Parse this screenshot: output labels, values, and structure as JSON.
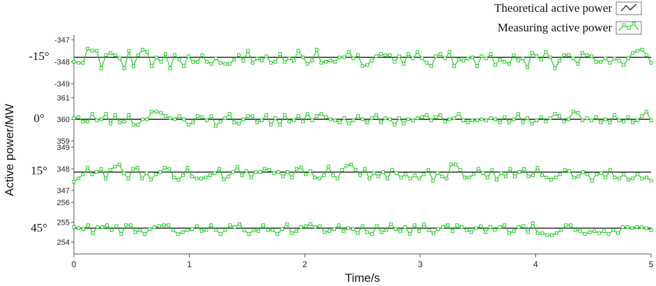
{
  "chart_data": {
    "type": "line",
    "xlabel": "Time/s",
    "ylabel": "Active power/MW",
    "xlim": [
      0,
      5
    ],
    "xticks": [
      "0",
      "1",
      "2",
      "3",
      "4",
      "5"
    ],
    "legend": {
      "placement": "top-right",
      "entries": [
        "Theoretical active power",
        "Measuring active power"
      ]
    },
    "colors": {
      "theoretical": "#1a1a1a",
      "measured": "#22cc22",
      "axis": "#555555"
    },
    "panels": [
      {
        "label": "-15°",
        "ylim": [
          -349,
          -347
        ],
        "yticks": [
          "-347",
          "-348",
          "-349"
        ],
        "theoretical": -347.8,
        "measured": [
          -348.0,
          -348.05,
          -348.05,
          -347.4,
          -347.5,
          -347.5,
          -348.3,
          -347.7,
          -347.6,
          -347.7,
          -347.85,
          -348.3,
          -347.5,
          -348.2,
          -347.7,
          -347.45,
          -347.55,
          -348.2,
          -347.8,
          -348.0,
          -347.65,
          -348.3,
          -347.7,
          -347.9,
          -348.2,
          -347.75,
          -348.0,
          -348.0,
          -347.7,
          -348.0,
          -348.1,
          -347.85,
          -348.05,
          -348.1,
          -348.1,
          -347.9,
          -347.7,
          -347.95,
          -347.5,
          -348.05,
          -347.85,
          -347.95,
          -347.75,
          -348.05,
          -348.0,
          -347.65,
          -348.0,
          -347.85,
          -347.95,
          -347.5,
          -347.8,
          -348.1,
          -347.95,
          -347.45,
          -348.05,
          -348.0,
          -347.95,
          -348.0,
          -347.8,
          -347.8,
          -347.55,
          -347.85,
          -347.7,
          -348.2,
          -348.15,
          -347.95,
          -347.75,
          -347.65,
          -347.7,
          -347.7,
          -348.0,
          -347.75,
          -348.1,
          -347.65,
          -347.85,
          -347.55,
          -347.85,
          -348.05,
          -348.2,
          -347.75,
          -347.65,
          -347.85,
          -347.55,
          -348.2,
          -347.9,
          -347.95,
          -347.85,
          -347.8,
          -348.2,
          -347.75,
          -347.85,
          -347.65,
          -348.15,
          -347.9,
          -348.0,
          -348.1,
          -347.7,
          -347.95,
          -347.85,
          -348.25,
          -347.6,
          -347.75,
          -347.9,
          -347.55,
          -347.8,
          -348.3,
          -347.95,
          -347.7,
          -347.7,
          -347.85,
          -348.1,
          -347.6,
          -347.7,
          -347.75,
          -348.0,
          -348.0,
          -347.85,
          -348.05,
          -347.85,
          -347.95,
          -348.15,
          -347.85,
          -347.6,
          -347.5,
          -347.45,
          -347.7,
          -348.05
        ]
      },
      {
        "label": "0°",
        "ylim": [
          359,
          361
        ],
        "yticks": [
          "361",
          "360",
          "359"
        ],
        "theoretical": 360.0,
        "measured": [
          360.05,
          360.1,
          359.9,
          359.9,
          360.25,
          359.95,
          360.0,
          360.25,
          359.8,
          360.2,
          359.85,
          359.9,
          360.2,
          359.75,
          359.75,
          360.0,
          360.0,
          360.35,
          360.35,
          360.3,
          360.15,
          360.05,
          360.0,
          360.15,
          360.0,
          359.75,
          359.85,
          360.15,
          360.1,
          359.95,
          360.15,
          359.7,
          359.9,
          360.05,
          360.25,
          359.85,
          359.8,
          360.0,
          360.15,
          360.15,
          359.85,
          359.95,
          360.2,
          359.75,
          360.05,
          359.75,
          360.2,
          359.9,
          359.95,
          360.15,
          359.9,
          360.25,
          359.95,
          360.15,
          360.25,
          360.1,
          360.0,
          359.95,
          359.85,
          360.05,
          359.8,
          359.95,
          360.15,
          360.0,
          359.85,
          360.05,
          360.2,
          359.85,
          360.05,
          360.0,
          359.75,
          360.05,
          359.8,
          360.0,
          359.95,
          360.05,
          360.1,
          360.2,
          359.95,
          360.1,
          360.2,
          359.9,
          360.0,
          360.05,
          360.25,
          359.95,
          359.85,
          359.95,
          359.95,
          360.0,
          359.95,
          360.05,
          360.0,
          359.85,
          360.1,
          359.85,
          360.0,
          360.25,
          359.85,
          360.05,
          359.8,
          359.95,
          360.1,
          359.9,
          360.05,
          360.25,
          360.15,
          359.9,
          360.0,
          360.35,
          360.3,
          359.95,
          360.05,
          359.95,
          360.1,
          359.85,
          360.0,
          359.85,
          360.2,
          359.95,
          359.9,
          360.1,
          359.85,
          359.95,
          360.15,
          360.35,
          359.95
        ]
      },
      {
        "label": "15°",
        "ylim": [
          347,
          349
        ],
        "yticks": [
          "349",
          "348",
          "347"
        ],
        "theoretical": 347.85,
        "measured": [
          347.4,
          347.55,
          347.75,
          348.05,
          347.75,
          347.85,
          348.0,
          347.55,
          347.95,
          348.1,
          348.2,
          347.8,
          347.55,
          348.0,
          348.05,
          347.55,
          347.8,
          347.5,
          347.75,
          347.85,
          348.05,
          348.0,
          347.6,
          347.5,
          347.7,
          348.05,
          347.65,
          347.55,
          347.55,
          347.6,
          347.7,
          347.8,
          348.0,
          347.5,
          347.65,
          347.85,
          348.1,
          347.7,
          347.9,
          347.6,
          347.85,
          347.85,
          348.0,
          347.95,
          347.8,
          347.85,
          347.65,
          347.85,
          347.6,
          348.0,
          348.05,
          347.75,
          347.9,
          347.6,
          347.55,
          347.7,
          348.1,
          347.7,
          347.55,
          347.95,
          348.15,
          348.2,
          347.95,
          347.7,
          348.0,
          347.55,
          347.8,
          347.65,
          347.85,
          347.55,
          347.95,
          347.8,
          347.6,
          347.75,
          347.55,
          347.7,
          347.55,
          347.75,
          347.95,
          347.45,
          347.8,
          347.65,
          347.55,
          348.2,
          348.2,
          347.95,
          347.6,
          347.6,
          347.75,
          348.0,
          347.8,
          347.6,
          347.95,
          347.5,
          347.8,
          347.65,
          348.0,
          347.65,
          347.85,
          348.0,
          347.65,
          347.7,
          348.05,
          347.7,
          347.6,
          347.5,
          347.6,
          347.75,
          347.95,
          347.9,
          347.6,
          347.65,
          347.85,
          347.75,
          347.45,
          347.75,
          347.8,
          347.6,
          347.95,
          347.6,
          347.55,
          347.75,
          347.5,
          347.55,
          347.75,
          347.55,
          347.6,
          347.45
        ]
      },
      {
        "label": "45°",
        "ylim": [
          254,
          256
        ],
        "yticks": [
          "256",
          "255",
          "254"
        ],
        "theoretical": 254.7,
        "measured": [
          254.75,
          254.7,
          254.65,
          254.85,
          254.45,
          254.75,
          254.75,
          254.85,
          254.6,
          254.8,
          254.4,
          254.85,
          254.85,
          254.5,
          254.6,
          254.4,
          254.65,
          254.75,
          254.8,
          254.85,
          254.85,
          254.6,
          254.4,
          254.5,
          254.6,
          254.65,
          254.8,
          254.55,
          254.6,
          254.85,
          254.6,
          254.4,
          254.6,
          254.85,
          254.75,
          254.9,
          254.6,
          254.4,
          254.6,
          254.55,
          254.85,
          254.6,
          254.6,
          254.4,
          254.65,
          254.9,
          254.45,
          254.55,
          254.75,
          254.8,
          254.9,
          254.75,
          254.8,
          254.5,
          254.55,
          254.65,
          254.85,
          254.55,
          254.7,
          254.65,
          254.45,
          254.8,
          254.5,
          254.4,
          254.8,
          254.5,
          254.6,
          254.9,
          254.65,
          254.55,
          254.75,
          254.4,
          254.85,
          254.55,
          254.9,
          254.6,
          254.45,
          254.65,
          254.75,
          254.85,
          254.55,
          254.85,
          254.75,
          254.6,
          254.5,
          254.7,
          254.8,
          254.5,
          254.75,
          254.6,
          254.75,
          254.85,
          254.45,
          254.55,
          254.75,
          254.8,
          254.5,
          254.95,
          254.45,
          254.45,
          254.35,
          254.35,
          254.45,
          254.6,
          254.85,
          254.85,
          254.6,
          254.55,
          254.4,
          254.5,
          254.55,
          254.45,
          254.55,
          254.4,
          254.6,
          254.45,
          254.75,
          254.75,
          254.7,
          254.75,
          254.75,
          254.7,
          254.6
        ]
      }
    ]
  }
}
